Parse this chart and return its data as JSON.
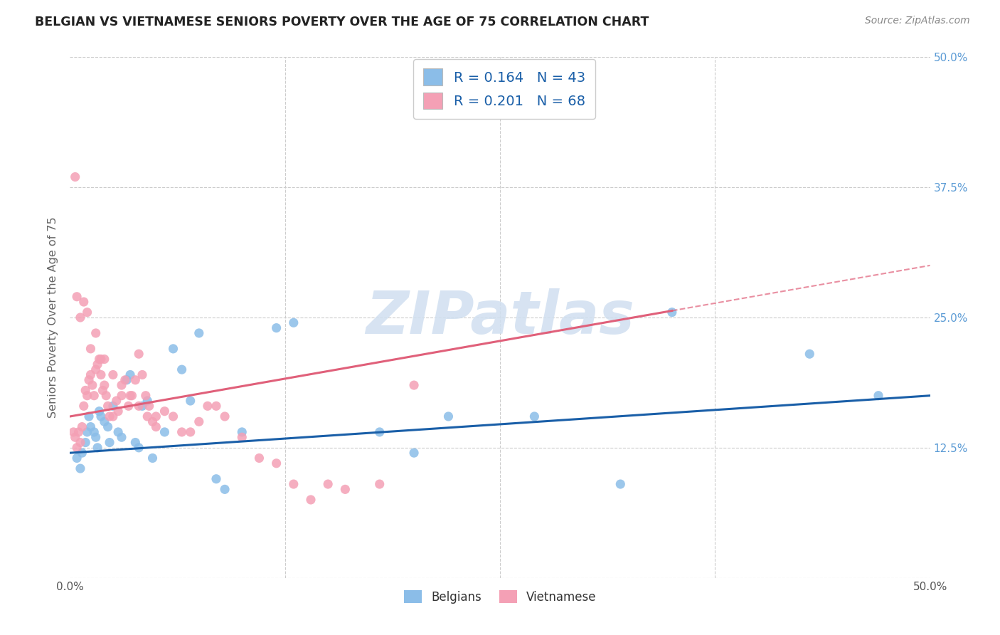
{
  "title": "BELGIAN VS VIETNAMESE SENIORS POVERTY OVER THE AGE OF 75 CORRELATION CHART",
  "source": "Source: ZipAtlas.com",
  "ylabel": "Seniors Poverty Over the Age of 75",
  "xlim": [
    0.0,
    0.5
  ],
  "ylim": [
    0.0,
    0.5
  ],
  "belgian_color": "#8bbde8",
  "vietnamese_color": "#f4a0b5",
  "trend_belgian_color": "#1a5fa8",
  "trend_vietnamese_color": "#e0607a",
  "legend_color": "#1a5fa8",
  "watermark_color": "#d0dff0",
  "right_tick_color": "#5b9bd5",
  "grid_color": "#cccccc",
  "title_color": "#222222",
  "background_color": "#ffffff",
  "bel_R": 0.164,
  "bel_N": 43,
  "viet_R": 0.201,
  "viet_N": 68,
  "bel_trend_x0": 0.0,
  "bel_trend_y0": 0.12,
  "bel_trend_x1": 0.5,
  "bel_trend_y1": 0.175,
  "viet_trend_x0": 0.0,
  "viet_trend_y0": 0.155,
  "viet_trend_x1": 0.5,
  "viet_trend_y1": 0.3,
  "belgian_x": [
    0.004,
    0.006,
    0.007,
    0.009,
    0.01,
    0.011,
    0.012,
    0.014,
    0.015,
    0.016,
    0.017,
    0.018,
    0.02,
    0.022,
    0.023,
    0.025,
    0.028,
    0.03,
    0.033,
    0.035,
    0.038,
    0.04,
    0.042,
    0.045,
    0.048,
    0.055,
    0.06,
    0.065,
    0.07,
    0.075,
    0.085,
    0.09,
    0.1,
    0.12,
    0.13,
    0.18,
    0.2,
    0.22,
    0.27,
    0.32,
    0.35,
    0.43,
    0.47
  ],
  "belgian_y": [
    0.115,
    0.105,
    0.12,
    0.13,
    0.14,
    0.155,
    0.145,
    0.14,
    0.135,
    0.125,
    0.16,
    0.155,
    0.15,
    0.145,
    0.13,
    0.165,
    0.14,
    0.135,
    0.19,
    0.195,
    0.13,
    0.125,
    0.165,
    0.17,
    0.115,
    0.14,
    0.22,
    0.2,
    0.17,
    0.235,
    0.095,
    0.085,
    0.14,
    0.24,
    0.245,
    0.14,
    0.12,
    0.155,
    0.155,
    0.09,
    0.255,
    0.215,
    0.175
  ],
  "vietnamese_x": [
    0.002,
    0.003,
    0.004,
    0.005,
    0.006,
    0.007,
    0.008,
    0.009,
    0.01,
    0.011,
    0.012,
    0.013,
    0.014,
    0.015,
    0.016,
    0.017,
    0.018,
    0.019,
    0.02,
    0.021,
    0.022,
    0.023,
    0.025,
    0.027,
    0.028,
    0.03,
    0.032,
    0.034,
    0.036,
    0.038,
    0.04,
    0.042,
    0.044,
    0.046,
    0.048,
    0.05,
    0.055,
    0.06,
    0.065,
    0.07,
    0.075,
    0.08,
    0.085,
    0.09,
    0.1,
    0.11,
    0.12,
    0.13,
    0.14,
    0.15,
    0.16,
    0.18,
    0.2,
    0.004,
    0.006,
    0.008,
    0.01,
    0.012,
    0.015,
    0.018,
    0.02,
    0.025,
    0.03,
    0.035,
    0.04,
    0.045,
    0.05,
    0.003
  ],
  "vietnamese_y": [
    0.14,
    0.135,
    0.125,
    0.14,
    0.13,
    0.145,
    0.165,
    0.18,
    0.175,
    0.19,
    0.195,
    0.185,
    0.175,
    0.2,
    0.205,
    0.21,
    0.195,
    0.18,
    0.185,
    0.175,
    0.165,
    0.155,
    0.155,
    0.17,
    0.16,
    0.175,
    0.19,
    0.165,
    0.175,
    0.19,
    0.215,
    0.195,
    0.175,
    0.165,
    0.15,
    0.155,
    0.16,
    0.155,
    0.14,
    0.14,
    0.15,
    0.165,
    0.165,
    0.155,
    0.135,
    0.115,
    0.11,
    0.09,
    0.075,
    0.09,
    0.085,
    0.09,
    0.185,
    0.27,
    0.25,
    0.265,
    0.255,
    0.22,
    0.235,
    0.21,
    0.21,
    0.195,
    0.185,
    0.175,
    0.165,
    0.155,
    0.145,
    0.385
  ]
}
